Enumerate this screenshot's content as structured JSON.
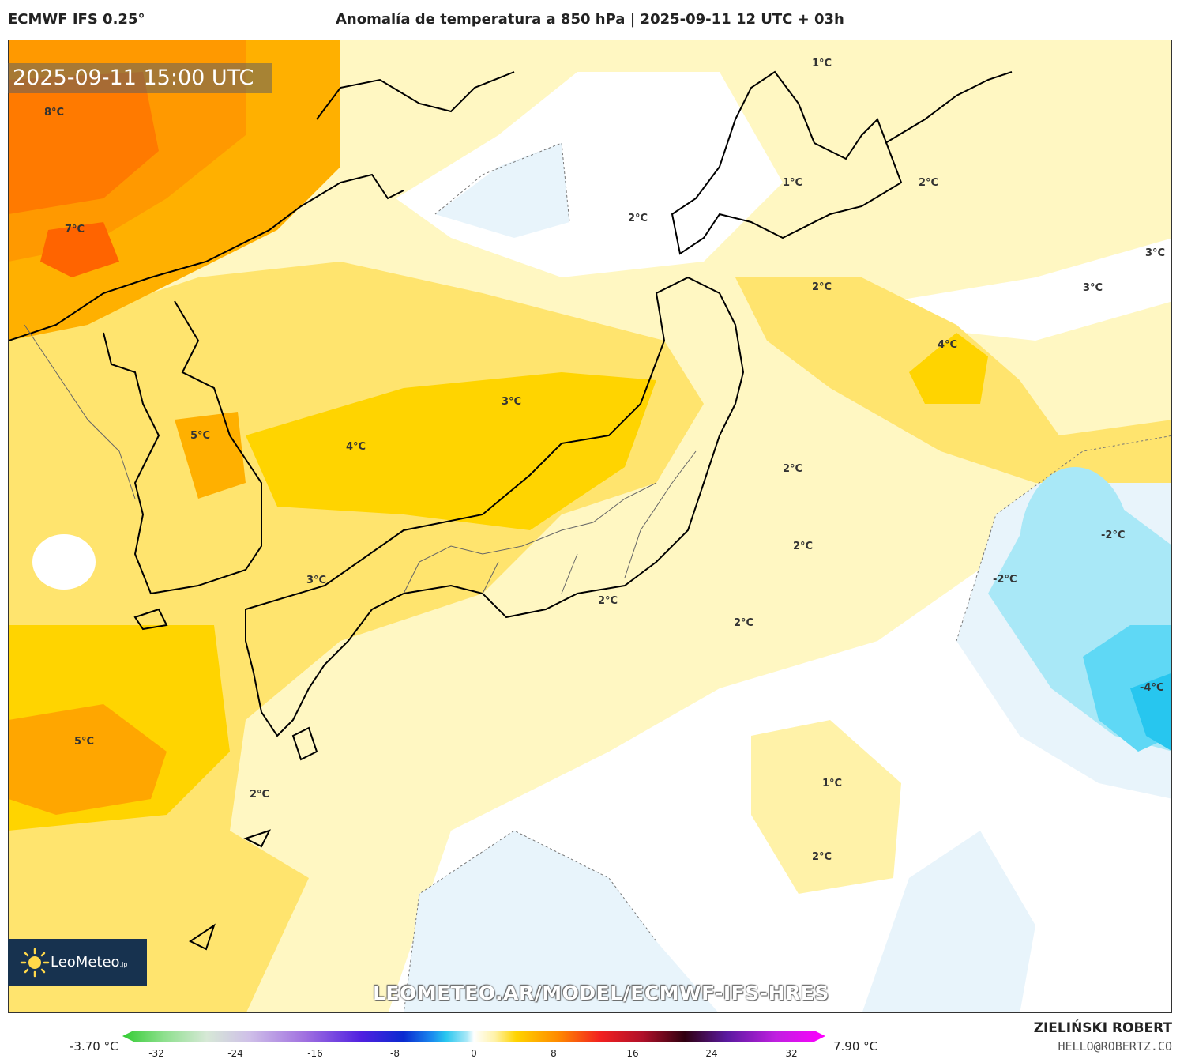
{
  "header": {
    "model": "ECMWF IFS 0.25°",
    "title": "Anomalía de temperatura a 850 hPa | 2025-09-11 12 UTC + 03h"
  },
  "map": {
    "timestamp": "2025-09-11 15:00 UTC",
    "watermark": "LEOMETEO.AR/MODEL/ECMWF-IFS-HRES",
    "logo_text": "LeoMeteo",
    "logo_suffix": ".jp",
    "contour_labels": [
      "8°C",
      "7°C",
      "5°C",
      "4°C",
      "3°C",
      "3°C",
      "2°C",
      "5°C",
      "2°C",
      "1°C",
      "1°C",
      "2°C",
      "2°C",
      "3°C",
      "3°C",
      "4°C",
      "2°C",
      "2°C",
      "2°C",
      "2°C",
      "-2°C",
      "-2°C",
      "-4°C",
      "1°C",
      "2°C"
    ]
  },
  "colorbar": {
    "min_label": "-3.70 °C",
    "max_label": "7.90 °C",
    "ticks": [
      "-32",
      "-24",
      "-16",
      "-8",
      "0",
      "8",
      "16",
      "24",
      "32"
    ]
  },
  "credits": {
    "author": "ZIELIŃSKI ROBERT",
    "email": "HELLO@ROBERTZ.CO"
  }
}
